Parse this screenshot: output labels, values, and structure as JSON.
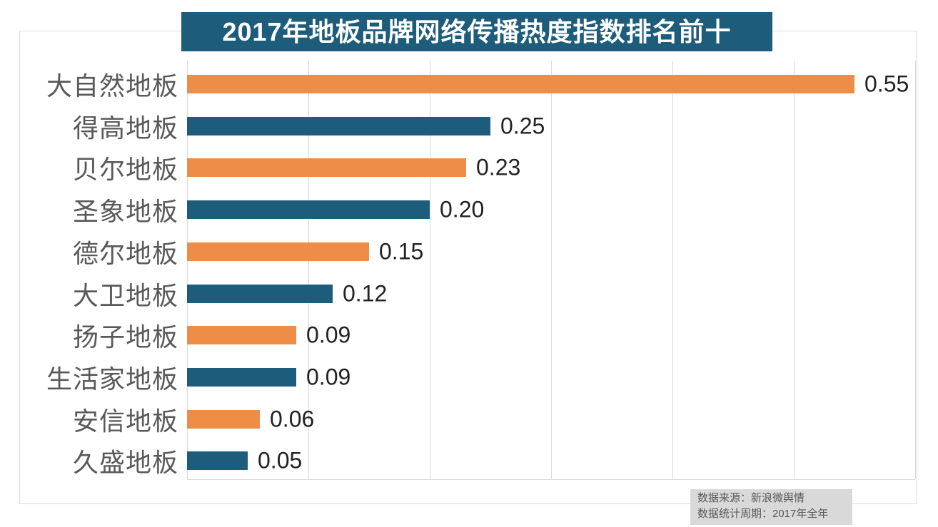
{
  "title_banner": {
    "text": "2017年地板品牌网络传播热度指数排名前十"
  },
  "chart_data": {
    "type": "bar",
    "orientation": "horizontal",
    "title": "2017年地板品牌网络传播热度指数排名前十",
    "categories": [
      "大自然地板",
      "得高地板",
      "贝尔地板",
      "圣象地板",
      "德尔地板",
      "大卫地板",
      "扬子地板",
      "生活家地板",
      "安信地板",
      "久盛地板"
    ],
    "values": [
      0.55,
      0.25,
      0.23,
      0.2,
      0.15,
      0.12,
      0.09,
      0.09,
      0.06,
      0.05
    ],
    "value_labels": [
      "0.55",
      "0.25",
      "0.23",
      "0.20",
      "0.15",
      "0.12",
      "0.09",
      "0.09",
      "0.06",
      "0.05"
    ],
    "xlim": [
      0,
      0.6
    ],
    "grid_interval": 0.1,
    "grid": true,
    "legend": false,
    "axis_tick_labels_visible": false,
    "bar_color_odd_rows": "#ee8d48",
    "bar_color_even_rows": "#1e5c7c"
  },
  "footer": {
    "source": "数据来源：新浪微舆情",
    "period": "数据统计周期：2017年全年"
  },
  "colors": {
    "accent_orange": "#ee8d48",
    "accent_teal": "#1e5c7c",
    "title_bg": "#1e5c7c",
    "title_text": "#ffffff",
    "gridline": "#d9d9d9",
    "border": "#d9d9d9",
    "category_label_text": "#595959",
    "value_text": "#222222",
    "footer_bg": "#d9d9d9",
    "footer_text": "#595959"
  }
}
